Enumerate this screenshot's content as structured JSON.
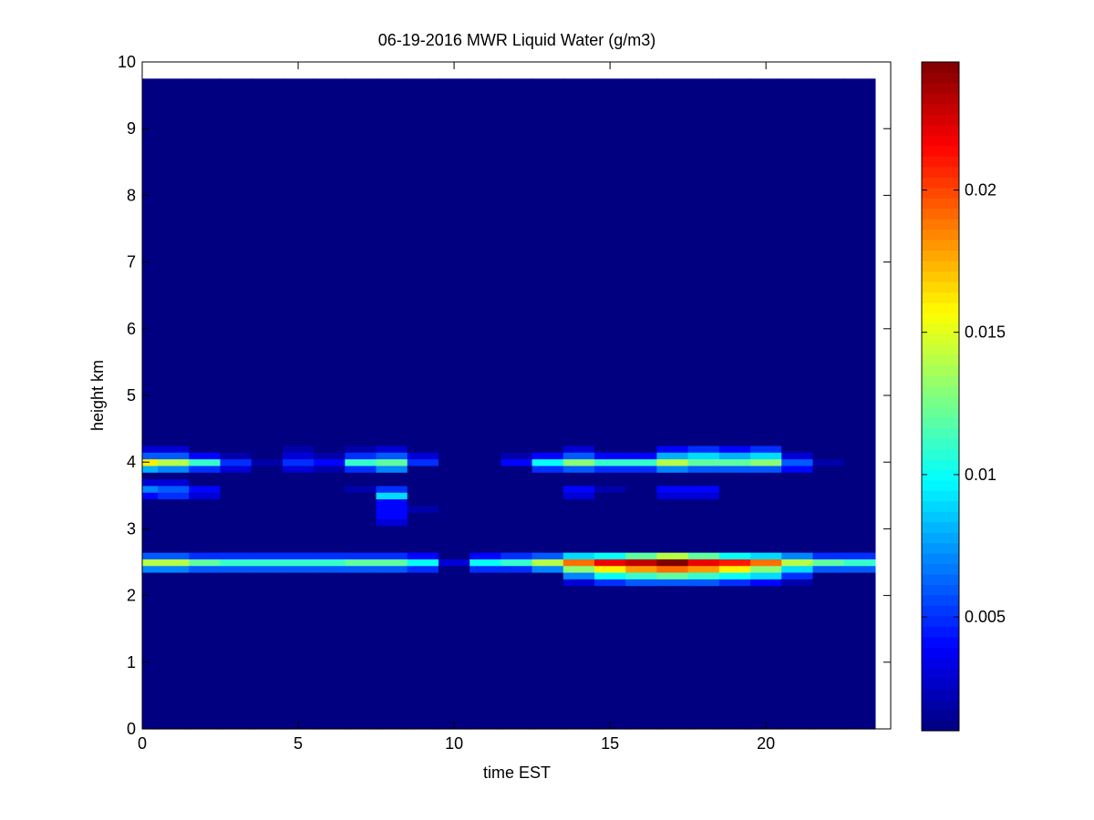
{
  "chart_data": {
    "type": "heatmap",
    "title": "06-19-2016 MWR Liquid Water (g/m3)",
    "xlabel": "time EST",
    "ylabel": "height km",
    "xlim": [
      0,
      24
    ],
    "ylim": [
      0,
      10
    ],
    "x_ticks": [
      "0",
      "5",
      "10",
      "15",
      "20"
    ],
    "y_ticks": [
      "0",
      "1",
      "2",
      "3",
      "4",
      "5",
      "6",
      "7",
      "8",
      "9",
      "10"
    ],
    "colorbar": {
      "colormap": "jet",
      "clim": [
        0.001,
        0.0245
      ],
      "ticks": [
        "0.005",
        "0.01",
        "0.015",
        "0.02"
      ]
    },
    "grid": false,
    "x_centers": [
      0,
      1,
      2,
      3,
      4,
      5,
      6,
      7,
      8,
      9,
      10,
      11,
      12,
      13,
      14,
      15,
      16,
      17,
      18,
      19,
      20,
      21,
      22,
      23
    ],
    "y_centers": [
      0.1,
      0.3,
      0.5,
      0.7,
      0.9,
      1.1,
      1.3,
      1.5,
      1.7,
      1.9,
      2.1,
      2.2,
      2.3,
      2.4,
      2.5,
      2.6,
      2.7,
      2.8,
      2.9,
      3.0,
      3.1,
      3.2,
      3.3,
      3.4,
      3.5,
      3.6,
      3.7,
      3.8,
      3.9,
      4.0,
      4.1,
      4.2,
      4.3,
      4.4,
      4.5,
      4.7,
      5.0,
      5.5,
      6.0,
      6.5,
      7.0,
      7.5,
      8.0,
      8.5,
      9.0,
      9.5
    ],
    "background_value": 0.001,
    "cells": [
      [
        0,
        2.4,
        0.007
      ],
      [
        0,
        2.5,
        0.014
      ],
      [
        0,
        2.6,
        0.006
      ],
      [
        1,
        2.4,
        0.007
      ],
      [
        1,
        2.5,
        0.014
      ],
      [
        1,
        2.6,
        0.006
      ],
      [
        2,
        2.4,
        0.006
      ],
      [
        2,
        2.5,
        0.012
      ],
      [
        2,
        2.6,
        0.005
      ],
      [
        3,
        2.4,
        0.006
      ],
      [
        3,
        2.5,
        0.011
      ],
      [
        3,
        2.6,
        0.005
      ],
      [
        4,
        2.4,
        0.006
      ],
      [
        4,
        2.5,
        0.011
      ],
      [
        4,
        2.6,
        0.005
      ],
      [
        5,
        2.4,
        0.006
      ],
      [
        5,
        2.5,
        0.011
      ],
      [
        5,
        2.6,
        0.005
      ],
      [
        6,
        2.4,
        0.006
      ],
      [
        6,
        2.5,
        0.011
      ],
      [
        6,
        2.6,
        0.005
      ],
      [
        7,
        2.4,
        0.006
      ],
      [
        7,
        2.5,
        0.012
      ],
      [
        7,
        2.6,
        0.005
      ],
      [
        8,
        2.4,
        0.006
      ],
      [
        8,
        2.5,
        0.012
      ],
      [
        8,
        2.6,
        0.005
      ],
      [
        9,
        2.4,
        0.005
      ],
      [
        9,
        2.5,
        0.01
      ],
      [
        9,
        2.6,
        0.004
      ],
      [
        10,
        2.5,
        0.003
      ],
      [
        11,
        2.4,
        0.005
      ],
      [
        11,
        2.5,
        0.01
      ],
      [
        11,
        2.6,
        0.004
      ],
      [
        12,
        2.4,
        0.005
      ],
      [
        12,
        2.5,
        0.011
      ],
      [
        12,
        2.6,
        0.005
      ],
      [
        13,
        2.4,
        0.007
      ],
      [
        13,
        2.5,
        0.014
      ],
      [
        13,
        2.6,
        0.006
      ],
      [
        14,
        2.2,
        0.003
      ],
      [
        14,
        2.3,
        0.007
      ],
      [
        14,
        2.4,
        0.013
      ],
      [
        14,
        2.5,
        0.019
      ],
      [
        14,
        2.6,
        0.009
      ],
      [
        15,
        2.2,
        0.005
      ],
      [
        15,
        2.3,
        0.01
      ],
      [
        15,
        2.4,
        0.016
      ],
      [
        15,
        2.5,
        0.022
      ],
      [
        15,
        2.6,
        0.01
      ],
      [
        16,
        2.2,
        0.006
      ],
      [
        16,
        2.3,
        0.011
      ],
      [
        16,
        2.4,
        0.018
      ],
      [
        16,
        2.5,
        0.023
      ],
      [
        16,
        2.6,
        0.012
      ],
      [
        17,
        2.2,
        0.006
      ],
      [
        17,
        2.3,
        0.012
      ],
      [
        17,
        2.4,
        0.019
      ],
      [
        17,
        2.5,
        0.0245
      ],
      [
        17,
        2.6,
        0.014
      ],
      [
        18,
        2.2,
        0.006
      ],
      [
        18,
        2.3,
        0.011
      ],
      [
        18,
        2.4,
        0.018
      ],
      [
        18,
        2.5,
        0.022
      ],
      [
        18,
        2.6,
        0.012
      ],
      [
        19,
        2.2,
        0.005
      ],
      [
        19,
        2.3,
        0.01
      ],
      [
        19,
        2.4,
        0.016
      ],
      [
        19,
        2.5,
        0.021
      ],
      [
        19,
        2.6,
        0.01
      ],
      [
        20,
        2.2,
        0.004
      ],
      [
        20,
        2.3,
        0.009
      ],
      [
        20,
        2.4,
        0.013
      ],
      [
        20,
        2.5,
        0.019
      ],
      [
        20,
        2.6,
        0.009
      ],
      [
        21,
        2.2,
        0.002
      ],
      [
        21,
        2.3,
        0.005
      ],
      [
        21,
        2.4,
        0.009
      ],
      [
        21,
        2.5,
        0.014
      ],
      [
        21,
        2.6,
        0.007
      ],
      [
        22,
        2.4,
        0.006
      ],
      [
        22,
        2.5,
        0.012
      ],
      [
        22,
        2.6,
        0.005
      ],
      [
        23,
        2.4,
        0.006
      ],
      [
        23,
        2.5,
        0.011
      ],
      [
        23,
        2.6,
        0.005
      ],
      [
        0,
        3.5,
        0.004
      ],
      [
        0,
        3.6,
        0.007
      ],
      [
        0,
        3.7,
        0.003
      ],
      [
        0,
        3.9,
        0.008
      ],
      [
        0,
        4.0,
        0.016
      ],
      [
        0,
        4.1,
        0.006
      ],
      [
        0,
        4.2,
        0.003
      ],
      [
        1,
        3.5,
        0.005
      ],
      [
        1,
        3.6,
        0.006
      ],
      [
        1,
        3.7,
        0.003
      ],
      [
        1,
        3.9,
        0.007
      ],
      [
        1,
        4.0,
        0.014
      ],
      [
        1,
        4.1,
        0.006
      ],
      [
        1,
        4.2,
        0.003
      ],
      [
        2,
        3.5,
        0.003
      ],
      [
        2,
        3.6,
        0.004
      ],
      [
        2,
        3.9,
        0.005
      ],
      [
        2,
        4.0,
        0.011
      ],
      [
        2,
        4.1,
        0.004
      ],
      [
        3,
        3.9,
        0.003
      ],
      [
        3,
        4.0,
        0.005
      ],
      [
        3,
        4.1,
        0.002
      ],
      [
        4,
        4.0,
        0.002
      ],
      [
        5,
        3.9,
        0.003
      ],
      [
        5,
        4.0,
        0.005
      ],
      [
        5,
        4.1,
        0.003
      ],
      [
        5,
        4.2,
        0.002
      ],
      [
        6,
        3.9,
        0.002
      ],
      [
        6,
        4.0,
        0.004
      ],
      [
        6,
        4.1,
        0.002
      ],
      [
        7,
        3.9,
        0.005
      ],
      [
        7,
        4.0,
        0.011
      ],
      [
        7,
        4.1,
        0.005
      ],
      [
        7,
        4.2,
        0.002
      ],
      [
        7,
        3.6,
        0.002
      ],
      [
        8,
        3.1,
        0.003
      ],
      [
        8,
        3.2,
        0.004
      ],
      [
        8,
        3.3,
        0.004
      ],
      [
        8,
        3.4,
        0.004
      ],
      [
        8,
        3.5,
        0.009
      ],
      [
        8,
        3.6,
        0.005
      ],
      [
        8,
        3.9,
        0.007
      ],
      [
        8,
        4.0,
        0.012
      ],
      [
        8,
        4.1,
        0.006
      ],
      [
        8,
        4.2,
        0.003
      ],
      [
        9,
        3.3,
        0.002
      ],
      [
        9,
        4.0,
        0.005
      ],
      [
        9,
        4.1,
        0.003
      ],
      [
        12,
        4.0,
        0.004
      ],
      [
        12,
        4.1,
        0.002
      ],
      [
        13,
        3.9,
        0.005
      ],
      [
        13,
        4.0,
        0.01
      ],
      [
        13,
        4.1,
        0.004
      ],
      [
        14,
        3.5,
        0.003
      ],
      [
        14,
        3.6,
        0.004
      ],
      [
        14,
        3.9,
        0.006
      ],
      [
        14,
        4.0,
        0.013
      ],
      [
        14,
        4.1,
        0.006
      ],
      [
        14,
        4.2,
        0.003
      ],
      [
        15,
        3.6,
        0.002
      ],
      [
        15,
        3.9,
        0.005
      ],
      [
        15,
        4.0,
        0.011
      ],
      [
        15,
        4.1,
        0.004
      ],
      [
        16,
        3.9,
        0.005
      ],
      [
        16,
        4.0,
        0.011
      ],
      [
        16,
        4.1,
        0.004
      ],
      [
        17,
        3.5,
        0.003
      ],
      [
        17,
        3.6,
        0.004
      ],
      [
        17,
        3.9,
        0.007
      ],
      [
        17,
        4.0,
        0.014
      ],
      [
        17,
        4.1,
        0.008
      ],
      [
        17,
        4.2,
        0.004
      ],
      [
        18,
        3.5,
        0.003
      ],
      [
        18,
        3.6,
        0.004
      ],
      [
        18,
        3.9,
        0.006
      ],
      [
        18,
        4.0,
        0.012
      ],
      [
        18,
        4.1,
        0.009
      ],
      [
        18,
        4.2,
        0.005
      ],
      [
        19,
        3.9,
        0.006
      ],
      [
        19,
        4.0,
        0.012
      ],
      [
        19,
        4.1,
        0.008
      ],
      [
        19,
        4.2,
        0.004
      ],
      [
        20,
        3.9,
        0.006
      ],
      [
        20,
        4.0,
        0.013
      ],
      [
        20,
        4.1,
        0.009
      ],
      [
        20,
        4.2,
        0.005
      ],
      [
        21,
        3.9,
        0.004
      ],
      [
        21,
        4.0,
        0.006
      ],
      [
        21,
        4.1,
        0.003
      ],
      [
        22,
        4.0,
        0.002
      ]
    ]
  }
}
